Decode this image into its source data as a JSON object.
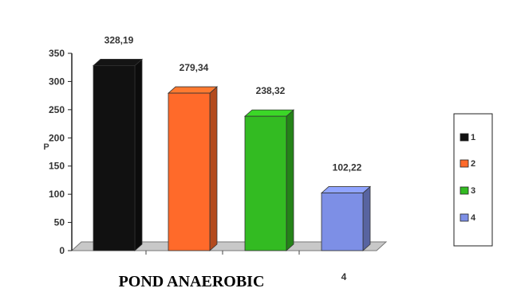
{
  "chart_data": {
    "type": "bar",
    "title": "POND ANAEROBIC",
    "ylabel": "P",
    "xlabel": "",
    "categories": [
      "1",
      "2",
      "3",
      "4"
    ],
    "values": [
      328.19,
      279.34,
      238.32,
      102.22
    ],
    "data_labels": [
      "328,19",
      "279,34",
      "238,32",
      "102,22"
    ],
    "ylim": [
      0,
      350
    ],
    "yticks": [
      0,
      50,
      100,
      150,
      200,
      250,
      300,
      350
    ],
    "colors": [
      "#111111",
      "#ff6a2a",
      "#33bb22",
      "#7d8fe6"
    ],
    "legend": {
      "placement": "right",
      "entries": [
        "1",
        "2",
        "3",
        "4"
      ]
    },
    "grid": false,
    "style": "3d"
  }
}
